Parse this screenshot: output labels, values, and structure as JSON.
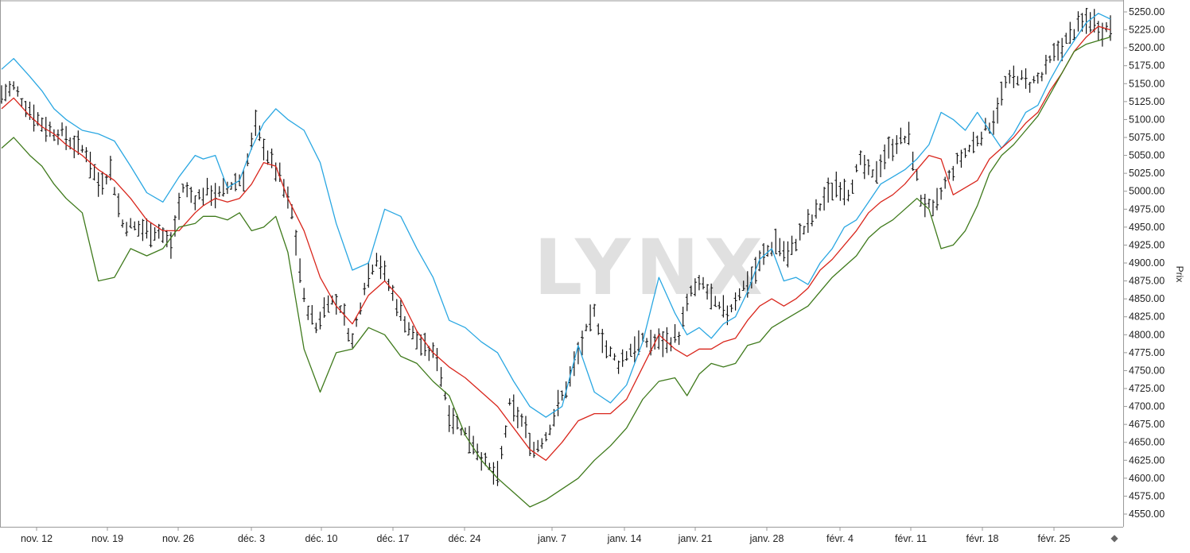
{
  "chart_data": {
    "type": "line",
    "subtype": "ohlc-bar-with-bands",
    "title": "",
    "watermark": "LYNX",
    "ylabel": "Prix",
    "xlabel": "",
    "ylim": [
      4550,
      5255
    ],
    "y_ticks": [
      "5250.00",
      "5225.00",
      "5200.00",
      "5175.00",
      "5150.00",
      "5125.00",
      "5100.00",
      "5075.00",
      "5050.00",
      "5025.00",
      "5000.00",
      "4975.00",
      "4950.00",
      "4925.00",
      "4900.00",
      "4875.00",
      "4850.00",
      "4825.00",
      "4800.00",
      "4775.00",
      "4750.00",
      "4725.00",
      "4700.00",
      "4675.00",
      "4650.00",
      "4625.00",
      "4600.00",
      "4575.00",
      "4550.00"
    ],
    "x_ticks": [
      "nov. 12",
      "nov. 19",
      "nov. 26",
      "déc. 3",
      "déc. 10",
      "déc. 17",
      "déc. 24",
      "janv. 7",
      "janv. 14",
      "janv. 21",
      "janv. 28",
      "févr. 4",
      "févr. 11",
      "févr. 18",
      "févr. 25"
    ],
    "grid": false,
    "colors": {
      "upper_band": "#2aa7e2",
      "middle_band": "#d9261c",
      "lower_band": "#3f7a1c",
      "bars": "#111111",
      "axis": "#9a9a9a"
    },
    "series": [
      {
        "key": "upper",
        "color": "#2aa7e2",
        "x": [
          0,
          3,
          7,
          10,
          13,
          16,
          20,
          24,
          28,
          32,
          36,
          40,
          44,
          48,
          50,
          53,
          56,
          59,
          62,
          65,
          68,
          71,
          75,
          79,
          83,
          87,
          91,
          95,
          99,
          103,
          107,
          111,
          115,
          119,
          123,
          127,
          131,
          135,
          139,
          143,
          147,
          151,
          155,
          159,
          163,
          167,
          170,
          173,
          176,
          179,
          182,
          185,
          188,
          191,
          194,
          197,
          200,
          203,
          206,
          209,
          212,
          215,
          218,
          221,
          224,
          227,
          230,
          233,
          236,
          239,
          242,
          245,
          248,
          251,
          254,
          257,
          260,
          263,
          266,
          269,
          272,
          275
        ],
        "y": [
          5170,
          5185,
          5160,
          5140,
          5115,
          5100,
          5085,
          5080,
          5070,
          5035,
          4998,
          4985,
          5020,
          5050,
          5045,
          5050,
          5005,
          5015,
          5060,
          5095,
          5115,
          5100,
          5085,
          5040,
          4955,
          4890,
          4900,
          4975,
          4965,
          4920,
          4880,
          4820,
          4810,
          4790,
          4775,
          4735,
          4700,
          4685,
          4700,
          4785,
          4720,
          4705,
          4730,
          4790,
          4880,
          4830,
          4800,
          4810,
          4795,
          4815,
          4825,
          4860,
          4905,
          4920,
          4875,
          4880,
          4870,
          4900,
          4920,
          4950,
          4960,
          4985,
          5010,
          5020,
          5030,
          5045,
          5065,
          5110,
          5100,
          5085,
          5110,
          5085,
          5060,
          5080,
          5110,
          5120,
          5155,
          5185,
          5210,
          5235,
          5248,
          5240
        ]
      },
      {
        "key": "middle",
        "color": "#d9261c",
        "x": [
          0,
          3,
          7,
          10,
          13,
          16,
          20,
          24,
          28,
          32,
          36,
          40,
          44,
          48,
          50,
          53,
          56,
          59,
          62,
          65,
          68,
          71,
          75,
          79,
          83,
          87,
          91,
          95,
          99,
          103,
          107,
          111,
          115,
          119,
          123,
          127,
          131,
          135,
          139,
          143,
          147,
          151,
          155,
          159,
          163,
          167,
          170,
          173,
          176,
          179,
          182,
          185,
          188,
          191,
          194,
          197,
          200,
          203,
          206,
          209,
          212,
          215,
          218,
          221,
          224,
          227,
          230,
          233,
          236,
          239,
          242,
          245,
          248,
          251,
          254,
          257,
          260,
          263,
          266,
          269,
          272,
          275
        ],
        "y": [
          5115,
          5130,
          5105,
          5090,
          5080,
          5065,
          5050,
          5030,
          5015,
          4990,
          4960,
          4945,
          4945,
          4970,
          4980,
          4990,
          4985,
          4990,
          5010,
          5040,
          5035,
          4990,
          4945,
          4880,
          4840,
          4815,
          4855,
          4875,
          4850,
          4805,
          4775,
          4755,
          4740,
          4720,
          4700,
          4670,
          4640,
          4625,
          4650,
          4680,
          4690,
          4690,
          4710,
          4755,
          4800,
          4780,
          4770,
          4780,
          4780,
          4790,
          4795,
          4820,
          4840,
          4850,
          4840,
          4850,
          4865,
          4890,
          4905,
          4925,
          4945,
          4970,
          4985,
          4995,
          5010,
          5030,
          5050,
          5045,
          4995,
          5005,
          5015,
          5045,
          5060,
          5075,
          5095,
          5110,
          5140,
          5165,
          5195,
          5215,
          5230,
          5225
        ]
      },
      {
        "key": "lower",
        "color": "#3f7a1c",
        "x": [
          0,
          3,
          7,
          10,
          13,
          16,
          20,
          24,
          28,
          32,
          36,
          40,
          44,
          48,
          50,
          53,
          56,
          59,
          62,
          65,
          68,
          71,
          75,
          79,
          83,
          87,
          91,
          95,
          99,
          103,
          107,
          111,
          115,
          119,
          123,
          127,
          131,
          135,
          139,
          143,
          147,
          151,
          155,
          159,
          163,
          167,
          170,
          173,
          176,
          179,
          182,
          185,
          188,
          191,
          194,
          197,
          200,
          203,
          206,
          209,
          212,
          215,
          218,
          221,
          224,
          227,
          230,
          233,
          236,
          239,
          242,
          245,
          248,
          251,
          254,
          257,
          260,
          263,
          266,
          269,
          272,
          275
        ],
        "y": [
          5060,
          5075,
          5050,
          5035,
          5010,
          4990,
          4970,
          4875,
          4880,
          4920,
          4910,
          4920,
          4950,
          4955,
          4965,
          4965,
          4960,
          4970,
          4945,
          4950,
          4965,
          4915,
          4780,
          4720,
          4775,
          4780,
          4810,
          4800,
          4770,
          4760,
          4735,
          4715,
          4660,
          4625,
          4600,
          4580,
          4560,
          4570,
          4585,
          4600,
          4625,
          4645,
          4670,
          4710,
          4735,
          4740,
          4715,
          4745,
          4760,
          4755,
          4760,
          4785,
          4790,
          4810,
          4820,
          4830,
          4840,
          4860,
          4880,
          4895,
          4910,
          4935,
          4950,
          4960,
          4975,
          4990,
          4975,
          4920,
          4925,
          4945,
          4980,
          5025,
          5050,
          5065,
          5085,
          5105,
          5135,
          5165,
          5195,
          5205,
          5210,
          5215
        ]
      },
      {
        "key": "price_path",
        "color": "#111111",
        "x": [
          0,
          3,
          6,
          9,
          12,
          15,
          18,
          21,
          24,
          27,
          30,
          33,
          36,
          39,
          42,
          45,
          48,
          51,
          54,
          57,
          60,
          63,
          66,
          69,
          72,
          75,
          78,
          81,
          84,
          87,
          90,
          93,
          96,
          99,
          102,
          105,
          108,
          111,
          114,
          117,
          120,
          123,
          126,
          129,
          132,
          135,
          138,
          141,
          144,
          147,
          150,
          153,
          156,
          159,
          162,
          165,
          168,
          171,
          174,
          177,
          180,
          183,
          186,
          189,
          192,
          195,
          198,
          201,
          204,
          207,
          210,
          213,
          216,
          219,
          222,
          225,
          228,
          231,
          234,
          237,
          240,
          243,
          246,
          249,
          252,
          255,
          258,
          261,
          264,
          267,
          270,
          273,
          275
        ],
        "y": [
          5135,
          5145,
          5120,
          5100,
          5085,
          5080,
          5065,
          5055,
          5010,
          5030,
          4955,
          4950,
          4945,
          4945,
          4925,
          5005,
          4990,
          5000,
          4995,
          5010,
          5020,
          5090,
          5050,
          5020,
          4970,
          4850,
          4810,
          4850,
          4840,
          4790,
          4870,
          4910,
          4870,
          4830,
          4800,
          4780,
          4770,
          4690,
          4670,
          4650,
          4620,
          4600,
          4700,
          4680,
          4640,
          4660,
          4700,
          4740,
          4790,
          4830,
          4780,
          4760,
          4780,
          4790,
          4790,
          4790,
          4800,
          4860,
          4870,
          4840,
          4830,
          4860,
          4880,
          4910,
          4930,
          4910,
          4940,
          4960,
          4990,
          5010,
          5000,
          5040,
          5020,
          5050,
          5070,
          5075,
          4990,
          4970,
          5010,
          5040,
          5060,
          5080,
          5100,
          5150,
          5160,
          5150,
          5160,
          5190,
          5210,
          5230,
          5240,
          5225,
          5230
        ]
      }
    ]
  }
}
